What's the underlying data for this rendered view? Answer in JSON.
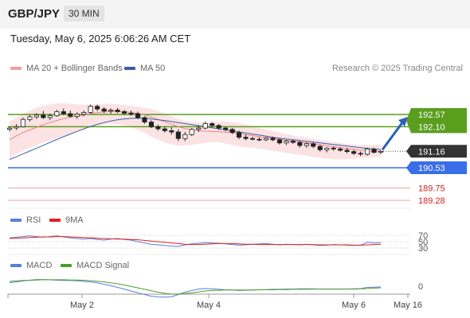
{
  "header": {
    "pair": "GBP/JPY",
    "timeframe": "30 MIN"
  },
  "timestamp": "Tuesday, May 6, 2025 6:06:26 AM CET",
  "legend_main": [
    {
      "label": "MA 20 + Bollinger Bands",
      "color": "#f0a0a0"
    },
    {
      "label": "MA 50",
      "color": "#3a5fa8"
    }
  ],
  "research_text": "Research © 2025 Trading Central",
  "legend_rsi": [
    {
      "label": "RSI",
      "color": "#5a7fd6"
    },
    {
      "label": "9MA",
      "color": "#e02020"
    }
  ],
  "legend_macd": [
    {
      "label": "MACD",
      "color": "#5a7fd6"
    },
    {
      "label": "MACD Signal",
      "color": "#4aa02a"
    }
  ],
  "colors": {
    "up_candle": "#ffffff",
    "down_candle": "#222222",
    "resistance": "#5a9e1e",
    "support": "#3a6ee8",
    "minor_support": "#f0a0a0",
    "arrow": "#2d5fb8",
    "current_price_bg": "#333333"
  },
  "chart_data": [
    {
      "type": "candlestick",
      "title": "GBP/JPY 30 MIN",
      "x_ticks": [
        "May 2",
        "May 4",
        "May 6",
        "May 16"
      ],
      "y_range": [
        189.0,
        193.2
      ],
      "candles": [
        [
          192.0,
          192.1,
          191.92,
          192.05
        ],
        [
          192.05,
          192.2,
          191.98,
          192.1
        ],
        [
          192.1,
          192.45,
          192.08,
          192.38
        ],
        [
          192.38,
          192.55,
          192.3,
          192.48
        ],
        [
          192.48,
          192.62,
          192.4,
          192.55
        ],
        [
          192.55,
          192.7,
          192.4,
          192.45
        ],
        [
          192.45,
          192.6,
          192.35,
          192.52
        ],
        [
          192.52,
          192.75,
          192.48,
          192.68
        ],
        [
          192.68,
          192.8,
          192.55,
          192.6
        ],
        [
          192.6,
          192.72,
          192.45,
          192.5
        ],
        [
          192.5,
          192.65,
          192.4,
          192.58
        ],
        [
          192.58,
          192.72,
          192.5,
          192.65
        ],
        [
          192.65,
          192.95,
          192.6,
          192.88
        ],
        [
          192.88,
          192.95,
          192.7,
          192.78
        ],
        [
          192.78,
          192.85,
          192.62,
          192.7
        ],
        [
          192.7,
          192.8,
          192.6,
          192.74
        ],
        [
          192.74,
          192.82,
          192.62,
          192.68
        ],
        [
          192.68,
          192.75,
          192.55,
          192.62
        ],
        [
          192.62,
          192.72,
          192.52,
          192.6
        ],
        [
          192.6,
          192.68,
          192.4,
          192.45
        ],
        [
          192.45,
          192.5,
          192.22,
          192.28
        ],
        [
          192.28,
          192.35,
          192.05,
          192.1
        ],
        [
          192.1,
          192.18,
          191.95,
          192.02
        ],
        [
          192.02,
          192.1,
          191.88,
          191.95
        ],
        [
          191.95,
          192.08,
          191.8,
          191.9
        ],
        [
          191.9,
          192.0,
          191.55,
          191.65
        ],
        [
          191.65,
          191.9,
          191.55,
          191.8
        ],
        [
          191.8,
          192.05,
          191.75,
          192.0
        ],
        [
          192.0,
          192.15,
          191.9,
          192.05
        ],
        [
          192.05,
          192.3,
          192.0,
          192.22
        ],
        [
          192.22,
          192.28,
          192.08,
          192.15
        ],
        [
          192.15,
          192.2,
          191.98,
          192.05
        ],
        [
          192.05,
          192.1,
          191.92,
          192.0
        ],
        [
          192.0,
          192.05,
          191.82,
          191.88
        ],
        [
          191.88,
          191.95,
          191.62,
          191.7
        ],
        [
          191.7,
          191.8,
          191.58,
          191.65
        ],
        [
          191.65,
          191.72,
          191.58,
          191.62
        ],
        [
          191.62,
          191.7,
          191.55,
          191.6
        ],
        [
          191.6,
          191.7,
          191.55,
          191.66
        ],
        [
          191.66,
          191.72,
          191.55,
          191.6
        ],
        [
          191.6,
          191.65,
          191.42,
          191.48
        ],
        [
          191.48,
          191.6,
          191.4,
          191.55
        ],
        [
          191.55,
          191.62,
          191.45,
          191.5
        ],
        [
          191.5,
          191.55,
          191.3,
          191.38
        ],
        [
          191.38,
          191.5,
          191.3,
          191.45
        ],
        [
          191.45,
          191.52,
          191.28,
          191.35
        ],
        [
          191.35,
          191.4,
          191.15,
          191.22
        ],
        [
          191.22,
          191.32,
          191.12,
          191.28
        ],
        [
          191.28,
          191.35,
          191.18,
          191.25
        ],
        [
          191.25,
          191.32,
          191.15,
          191.2
        ],
        [
          191.2,
          191.28,
          191.08,
          191.15
        ],
        [
          191.15,
          191.22,
          191.02,
          191.08
        ],
        [
          191.08,
          191.15,
          190.98,
          191.05
        ],
        [
          191.05,
          191.3,
          191.0,
          191.25
        ],
        [
          191.25,
          191.3,
          191.08,
          191.12
        ],
        [
          191.12,
          191.2,
          191.05,
          191.16
        ]
      ],
      "ma20": [
        191.6,
        191.75,
        191.88,
        191.98,
        192.08,
        192.18,
        192.26,
        192.34,
        192.41,
        192.46,
        192.5,
        192.55,
        192.6,
        192.64,
        192.67,
        192.68,
        192.68,
        192.67,
        192.65,
        192.61,
        192.55,
        192.47,
        192.38,
        192.29,
        192.2,
        192.1,
        192.03,
        191.98,
        191.95,
        191.93,
        191.92,
        191.91,
        191.89,
        191.87,
        191.84,
        191.8,
        191.76,
        191.72,
        191.69,
        191.66,
        191.62,
        191.58,
        191.55,
        191.52,
        191.48,
        191.45,
        191.41,
        191.37,
        191.33,
        191.3,
        191.27,
        191.24,
        191.2,
        191.18,
        191.17,
        191.16
      ],
      "ma50": [
        190.85,
        190.95,
        191.06,
        191.17,
        191.28,
        191.39,
        191.5,
        191.61,
        191.72,
        191.82,
        191.92,
        192.02,
        192.11,
        192.19,
        192.26,
        192.32,
        192.37,
        192.4,
        192.42,
        192.43,
        192.42,
        192.4,
        192.37,
        192.34,
        192.3,
        192.26,
        192.22,
        192.18,
        192.14,
        192.1,
        192.06,
        192.02,
        191.98,
        191.94,
        191.9,
        191.86,
        191.82,
        191.78,
        191.74,
        191.7,
        191.66,
        191.63,
        191.6,
        191.57,
        191.54,
        191.51,
        191.48,
        191.45,
        191.42,
        191.39,
        191.36,
        191.33,
        191.3,
        191.27,
        191.25,
        191.23
      ],
      "bb_upper": [
        192.3,
        192.45,
        192.6,
        192.72,
        192.82,
        192.9,
        192.96,
        193.0,
        193.0,
        192.98,
        192.95,
        192.94,
        192.95,
        192.96,
        192.98,
        192.98,
        192.96,
        192.93,
        192.9,
        192.87,
        192.83,
        192.78,
        192.7,
        192.6,
        192.5,
        192.4,
        192.32,
        192.28,
        192.26,
        192.26,
        192.28,
        192.3,
        192.3,
        192.28,
        192.24,
        192.18,
        192.12,
        192.06,
        192.0,
        191.94,
        191.88,
        191.82,
        191.76,
        191.72,
        191.68,
        191.64,
        191.6,
        191.56,
        191.52,
        191.48,
        191.44,
        191.42,
        191.4,
        191.4,
        191.4,
        191.4
      ],
      "bb_lower": [
        190.9,
        191.05,
        191.18,
        191.3,
        191.4,
        191.5,
        191.58,
        191.66,
        191.75,
        191.84,
        191.92,
        192.02,
        192.1,
        192.16,
        192.2,
        192.22,
        192.2,
        192.15,
        192.08,
        191.98,
        191.86,
        191.72,
        191.6,
        191.5,
        191.42,
        191.38,
        191.38,
        191.4,
        191.44,
        191.48,
        191.52,
        191.5,
        191.46,
        191.4,
        191.35,
        191.32,
        191.3,
        191.26,
        191.22,
        191.18,
        191.14,
        191.1,
        191.06,
        191.02,
        190.98,
        190.94,
        190.9,
        190.88,
        190.86,
        190.85,
        190.86,
        190.88,
        190.9,
        190.92,
        190.94,
        190.94
      ],
      "levels": {
        "resistance": [
          192.57,
          192.1
        ],
        "current": 191.16,
        "support": 190.53,
        "minor_support": [
          189.75,
          189.28
        ]
      },
      "arrow": {
        "from": 191.16,
        "to": 192.57
      }
    },
    {
      "type": "line",
      "title": "RSI",
      "y_ticks": [
        70,
        50,
        30
      ],
      "ylim": [
        20,
        85
      ],
      "series": [
        {
          "name": "RSI",
          "values": [
            62,
            64,
            66,
            68,
            66,
            64,
            66,
            68,
            65,
            62,
            60,
            58,
            60,
            57,
            55,
            58,
            60,
            57,
            55,
            50,
            46,
            42,
            40,
            38,
            36,
            35,
            40,
            43,
            45,
            47,
            46,
            45,
            43,
            41,
            39,
            40,
            42,
            43,
            44,
            42,
            40,
            42,
            41,
            40,
            42,
            40,
            38,
            39,
            41,
            40,
            39,
            38,
            39,
            48,
            46,
            47
          ]
        },
        {
          "name": "9MA",
          "values": [
            60,
            61,
            62,
            63,
            64,
            65,
            65,
            66,
            66,
            65,
            64,
            63,
            62,
            61,
            60,
            59,
            58,
            58,
            57,
            56,
            54,
            52,
            50,
            48,
            46,
            44,
            42,
            41,
            41,
            42,
            43,
            44,
            44,
            44,
            43,
            42,
            42,
            41,
            41,
            41,
            41,
            41,
            41,
            41,
            41,
            41,
            40,
            40,
            40,
            40,
            40,
            39,
            39,
            40,
            41,
            42
          ]
        }
      ]
    },
    {
      "type": "line",
      "title": "MACD",
      "y_ticks": [
        0
      ],
      "ylim": [
        -0.6,
        0.45
      ],
      "series": [
        {
          "name": "MACD",
          "values": [
            0.15,
            0.18,
            0.22,
            0.25,
            0.28,
            0.28,
            0.27,
            0.25,
            0.24,
            0.24,
            0.23,
            0.2,
            0.18,
            0.14,
            0.08,
            0.02,
            -0.05,
            -0.12,
            -0.2,
            -0.28,
            -0.35,
            -0.42,
            -0.45,
            -0.46,
            -0.44,
            -0.35,
            -0.25,
            -0.18,
            -0.12,
            -0.1,
            -0.11,
            -0.13,
            -0.15,
            -0.16,
            -0.18,
            -0.17,
            -0.16,
            -0.15,
            -0.14,
            -0.13,
            -0.13,
            -0.12,
            -0.12,
            -0.11,
            -0.11,
            -0.11,
            -0.12,
            -0.12,
            -0.12,
            -0.12,
            -0.12,
            -0.11,
            -0.1,
            -0.05,
            -0.04,
            -0.03
          ]
        },
        {
          "name": "MACD Signal",
          "values": [
            0.2,
            0.22,
            0.24,
            0.25,
            0.26,
            0.27,
            0.27,
            0.27,
            0.27,
            0.26,
            0.26,
            0.25,
            0.23,
            0.21,
            0.18,
            0.14,
            0.1,
            0.05,
            -0.01,
            -0.07,
            -0.13,
            -0.19,
            -0.25,
            -0.3,
            -0.33,
            -0.33,
            -0.31,
            -0.28,
            -0.24,
            -0.2,
            -0.18,
            -0.17,
            -0.16,
            -0.16,
            -0.16,
            -0.16,
            -0.16,
            -0.15,
            -0.15,
            -0.15,
            -0.14,
            -0.14,
            -0.13,
            -0.13,
            -0.13,
            -0.12,
            -0.12,
            -0.12,
            -0.12,
            -0.12,
            -0.12,
            -0.12,
            -0.11,
            -0.1,
            -0.08,
            -0.07
          ]
        }
      ]
    }
  ]
}
